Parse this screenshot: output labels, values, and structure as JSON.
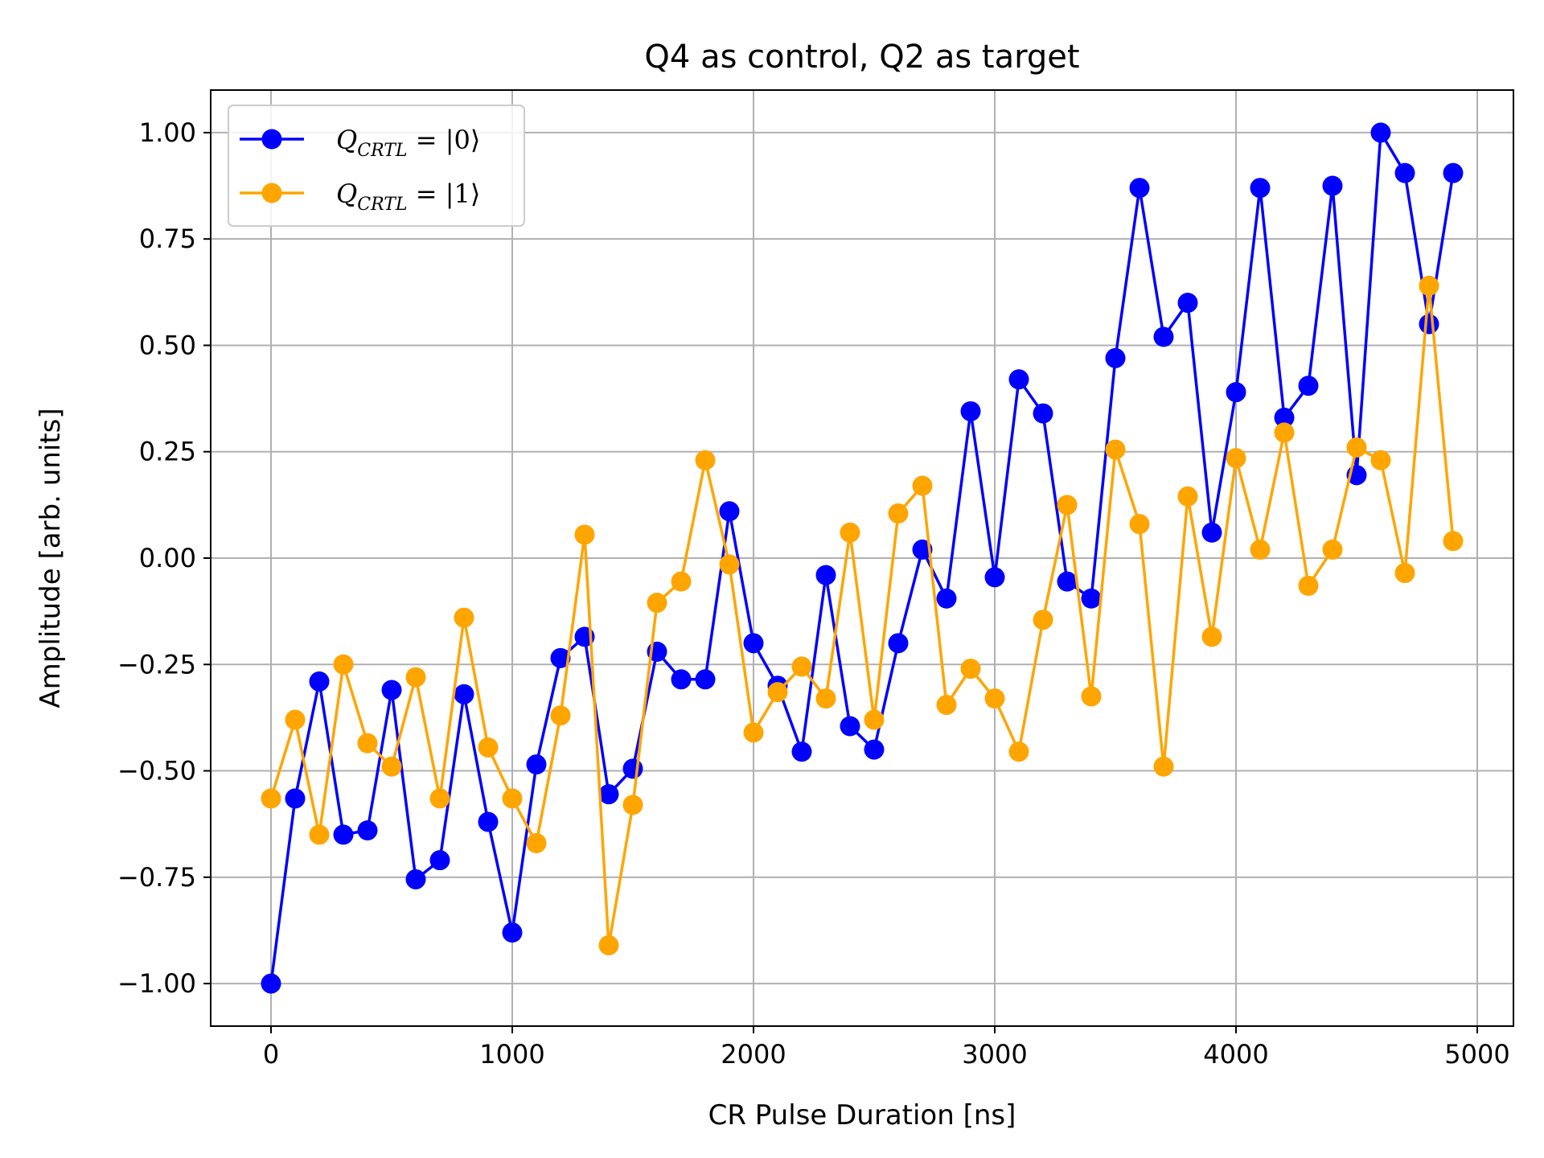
{
  "chart_data": {
    "type": "line",
    "title": "Q4 as control, Q2 as target",
    "xlabel": "CR Pulse Duration [ns]",
    "ylabel": "Amplitude [arb. units]",
    "xlim": [
      -250,
      5150
    ],
    "ylim": [
      -1.1,
      1.1
    ],
    "xticks": [
      0,
      1000,
      2000,
      3000,
      4000,
      5000
    ],
    "xtick_labels": [
      "0",
      "1000",
      "2000",
      "3000",
      "4000",
      "5000"
    ],
    "yticks": [
      -1.0,
      -0.75,
      -0.5,
      -0.25,
      0.0,
      0.25,
      0.5,
      0.75,
      1.0
    ],
    "ytick_labels": [
      "−1.00",
      "−0.75",
      "−0.50",
      "−0.25",
      "0.00",
      "0.25",
      "0.50",
      "0.75",
      "1.00"
    ],
    "grid": true,
    "legend_position": "top-left",
    "x": [
      0,
      100,
      200,
      300,
      400,
      500,
      600,
      700,
      800,
      900,
      1000,
      1100,
      1200,
      1300,
      1400,
      1500,
      1600,
      1700,
      1800,
      1900,
      2000,
      2100,
      2200,
      2300,
      2400,
      2500,
      2600,
      2700,
      2800,
      2900,
      3000,
      3100,
      3200,
      3300,
      3400,
      3500,
      3600,
      3700,
      3800,
      3900,
      4000,
      4100,
      4200,
      4300,
      4400,
      4500,
      4600,
      4700,
      4800,
      4900
    ],
    "series": [
      {
        "name": "Q_CRTL = |0⟩",
        "legend": {
          "base": "Q",
          "sub": "CRTL",
          "rest": " = |0⟩"
        },
        "color": "#0000ff",
        "values": [
          -1.0,
          -0.565,
          -0.29,
          -0.65,
          -0.64,
          -0.31,
          -0.755,
          -0.71,
          -0.32,
          -0.62,
          -0.88,
          -0.485,
          -0.235,
          -0.185,
          -0.555,
          -0.495,
          -0.22,
          -0.285,
          -0.285,
          0.11,
          -0.2,
          -0.3,
          -0.455,
          -0.04,
          -0.395,
          -0.45,
          -0.2,
          0.02,
          -0.095,
          0.345,
          -0.045,
          0.42,
          0.34,
          -0.055,
          -0.095,
          0.47,
          0.87,
          0.52,
          0.6,
          0.06,
          0.39,
          0.87,
          0.33,
          0.405,
          0.875,
          0.195,
          1.0,
          0.905,
          0.55,
          0.905
        ]
      },
      {
        "name": "Q_CRTL = |1⟩",
        "legend": {
          "base": "Q",
          "sub": "CRTL",
          "rest": " = |1⟩"
        },
        "color": "#ffa500",
        "values": [
          -0.565,
          -0.38,
          -0.65,
          -0.25,
          -0.435,
          -0.49,
          -0.28,
          -0.565,
          -0.14,
          -0.445,
          -0.565,
          -0.67,
          -0.37,
          0.055,
          -0.91,
          -0.58,
          -0.105,
          -0.055,
          0.23,
          -0.015,
          -0.41,
          -0.315,
          -0.255,
          -0.33,
          0.06,
          -0.38,
          0.105,
          0.17,
          -0.345,
          -0.26,
          -0.33,
          -0.455,
          -0.145,
          0.125,
          -0.325,
          0.255,
          0.08,
          -0.49,
          0.145,
          -0.185,
          0.235,
          0.02,
          0.295,
          -0.065,
          0.02,
          0.26,
          0.23,
          -0.035,
          0.64,
          0.04
        ]
      }
    ]
  }
}
